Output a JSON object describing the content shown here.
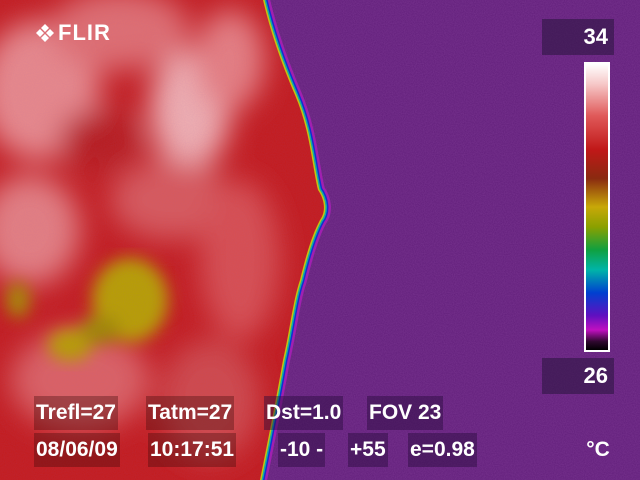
{
  "brand": {
    "name": "FLIR"
  },
  "scale": {
    "max": "34",
    "min": "26",
    "unit": "°C"
  },
  "info": {
    "trefl": "Trefl=27",
    "tatm": "Tatm=27",
    "dst": "Dst=1.0",
    "fov": "FOV 23",
    "date": "08/06/09",
    "time": "10:17:51",
    "range_low": "-10 -",
    "range_high": "+55",
    "emissivity": "e=0.98"
  },
  "palette": {
    "hot": "#c81e1e",
    "hot_light": "#f0b4b4",
    "warm_yellow": "#c8b000",
    "background_purple": "#5a1c6e"
  }
}
